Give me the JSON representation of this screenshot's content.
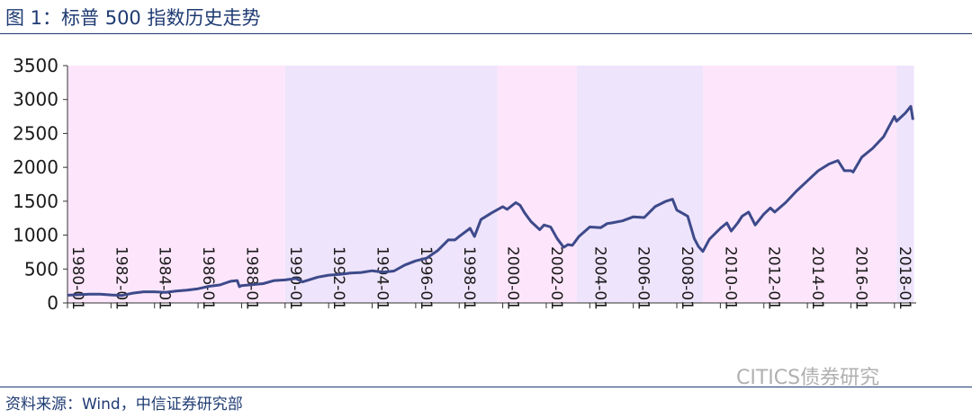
{
  "header": {
    "title": "图 1：标普 500 指数历史走势"
  },
  "footer": {
    "source": "资料来源：Wind，中信证券研究部"
  },
  "watermark": {
    "text": "CITICS债券研究"
  },
  "chart_data": {
    "type": "line",
    "title": "图 1：标普 500 指数历史走势",
    "xlabel": "",
    "ylabel": "",
    "ylim": [
      0,
      3500
    ],
    "yticks": [
      0,
      500,
      1000,
      1500,
      2000,
      2500,
      3000,
      3500
    ],
    "xticks": [
      "1980-01",
      "1982-01",
      "1984-01",
      "1986-01",
      "1988-01",
      "1990-01",
      "1992-01",
      "1994-01",
      "1996-01",
      "1998-01",
      "2000-01",
      "2002-01",
      "2004-01",
      "2006-01",
      "2008-01",
      "2010-01",
      "2012-01",
      "2014-01",
      "2016-01",
      "2018-01"
    ],
    "grid": false,
    "line_color": "#3d4a8a",
    "shaded_periods": [
      {
        "from": 1980.0,
        "to": 1990.0,
        "color": "#fde6fb"
      },
      {
        "from": 1990.0,
        "to": 1999.75,
        "color": "#eee4fb"
      },
      {
        "from": 1999.75,
        "to": 2003.4,
        "color": "#fde6fb"
      },
      {
        "from": 2003.4,
        "to": 2009.2,
        "color": "#eee4fb"
      },
      {
        "from": 2009.2,
        "to": 2018.1,
        "color": "#fde6fb"
      },
      {
        "from": 2018.1,
        "to": 2018.9,
        "color": "#eee4fb"
      }
    ],
    "series": [
      {
        "values": [
          [
            1980.0,
            114
          ],
          [
            1980.5,
            120
          ],
          [
            1981.0,
            130
          ],
          [
            1981.5,
            130
          ],
          [
            1982.0,
            118
          ],
          [
            1982.5,
            110
          ],
          [
            1983.0,
            145
          ],
          [
            1983.5,
            165
          ],
          [
            1984.0,
            165
          ],
          [
            1984.5,
            155
          ],
          [
            1985.0,
            175
          ],
          [
            1985.5,
            190
          ],
          [
            1986.0,
            210
          ],
          [
            1986.5,
            245
          ],
          [
            1987.0,
            265
          ],
          [
            1987.5,
            320
          ],
          [
            1987.8,
            330
          ],
          [
            1987.9,
            240
          ],
          [
            1988.0,
            255
          ],
          [
            1988.5,
            270
          ],
          [
            1989.0,
            285
          ],
          [
            1989.5,
            330
          ],
          [
            1990.0,
            340
          ],
          [
            1990.5,
            360
          ],
          [
            1990.8,
            310
          ],
          [
            1991.0,
            330
          ],
          [
            1991.5,
            380
          ],
          [
            1992.0,
            410
          ],
          [
            1992.5,
            420
          ],
          [
            1993.0,
            440
          ],
          [
            1993.5,
            450
          ],
          [
            1994.0,
            475
          ],
          [
            1994.5,
            455
          ],
          [
            1995.0,
            470
          ],
          [
            1995.5,
            560
          ],
          [
            1996.0,
            620
          ],
          [
            1996.5,
            660
          ],
          [
            1997.0,
            770
          ],
          [
            1997.5,
            930
          ],
          [
            1997.8,
            930
          ],
          [
            1998.0,
            980
          ],
          [
            1998.5,
            1100
          ],
          [
            1998.7,
            980
          ],
          [
            1999.0,
            1230
          ],
          [
            1999.5,
            1330
          ],
          [
            2000.0,
            1420
          ],
          [
            2000.2,
            1380
          ],
          [
            2000.6,
            1480
          ],
          [
            2000.8,
            1440
          ],
          [
            2001.0,
            1330
          ],
          [
            2001.3,
            1200
          ],
          [
            2001.7,
            1080
          ],
          [
            2001.9,
            1150
          ],
          [
            2002.2,
            1120
          ],
          [
            2002.5,
            950
          ],
          [
            2002.8,
            820
          ],
          [
            2003.0,
            860
          ],
          [
            2003.2,
            850
          ],
          [
            2003.5,
            980
          ],
          [
            2004.0,
            1120
          ],
          [
            2004.5,
            1110
          ],
          [
            2004.8,
            1170
          ],
          [
            2005.0,
            1180
          ],
          [
            2005.5,
            1210
          ],
          [
            2006.0,
            1270
          ],
          [
            2006.5,
            1260
          ],
          [
            2007.0,
            1420
          ],
          [
            2007.5,
            1500
          ],
          [
            2007.8,
            1530
          ],
          [
            2008.0,
            1370
          ],
          [
            2008.5,
            1280
          ],
          [
            2008.8,
            950
          ],
          [
            2009.0,
            830
          ],
          [
            2009.2,
            760
          ],
          [
            2009.5,
            940
          ],
          [
            2010.0,
            1100
          ],
          [
            2010.3,
            1180
          ],
          [
            2010.5,
            1060
          ],
          [
            2010.8,
            1180
          ],
          [
            2011.0,
            1280
          ],
          [
            2011.3,
            1340
          ],
          [
            2011.6,
            1150
          ],
          [
            2012.0,
            1310
          ],
          [
            2012.3,
            1400
          ],
          [
            2012.5,
            1340
          ],
          [
            2013.0,
            1480
          ],
          [
            2013.5,
            1650
          ],
          [
            2014.0,
            1800
          ],
          [
            2014.5,
            1950
          ],
          [
            2015.0,
            2050
          ],
          [
            2015.4,
            2100
          ],
          [
            2015.7,
            1950
          ],
          [
            2016.0,
            1950
          ],
          [
            2016.1,
            1930
          ],
          [
            2016.5,
            2150
          ],
          [
            2017.0,
            2280
          ],
          [
            2017.5,
            2450
          ],
          [
            2018.0,
            2750
          ],
          [
            2018.1,
            2680
          ],
          [
            2018.5,
            2800
          ],
          [
            2018.75,
            2900
          ],
          [
            2018.85,
            2700
          ]
        ]
      }
    ]
  }
}
